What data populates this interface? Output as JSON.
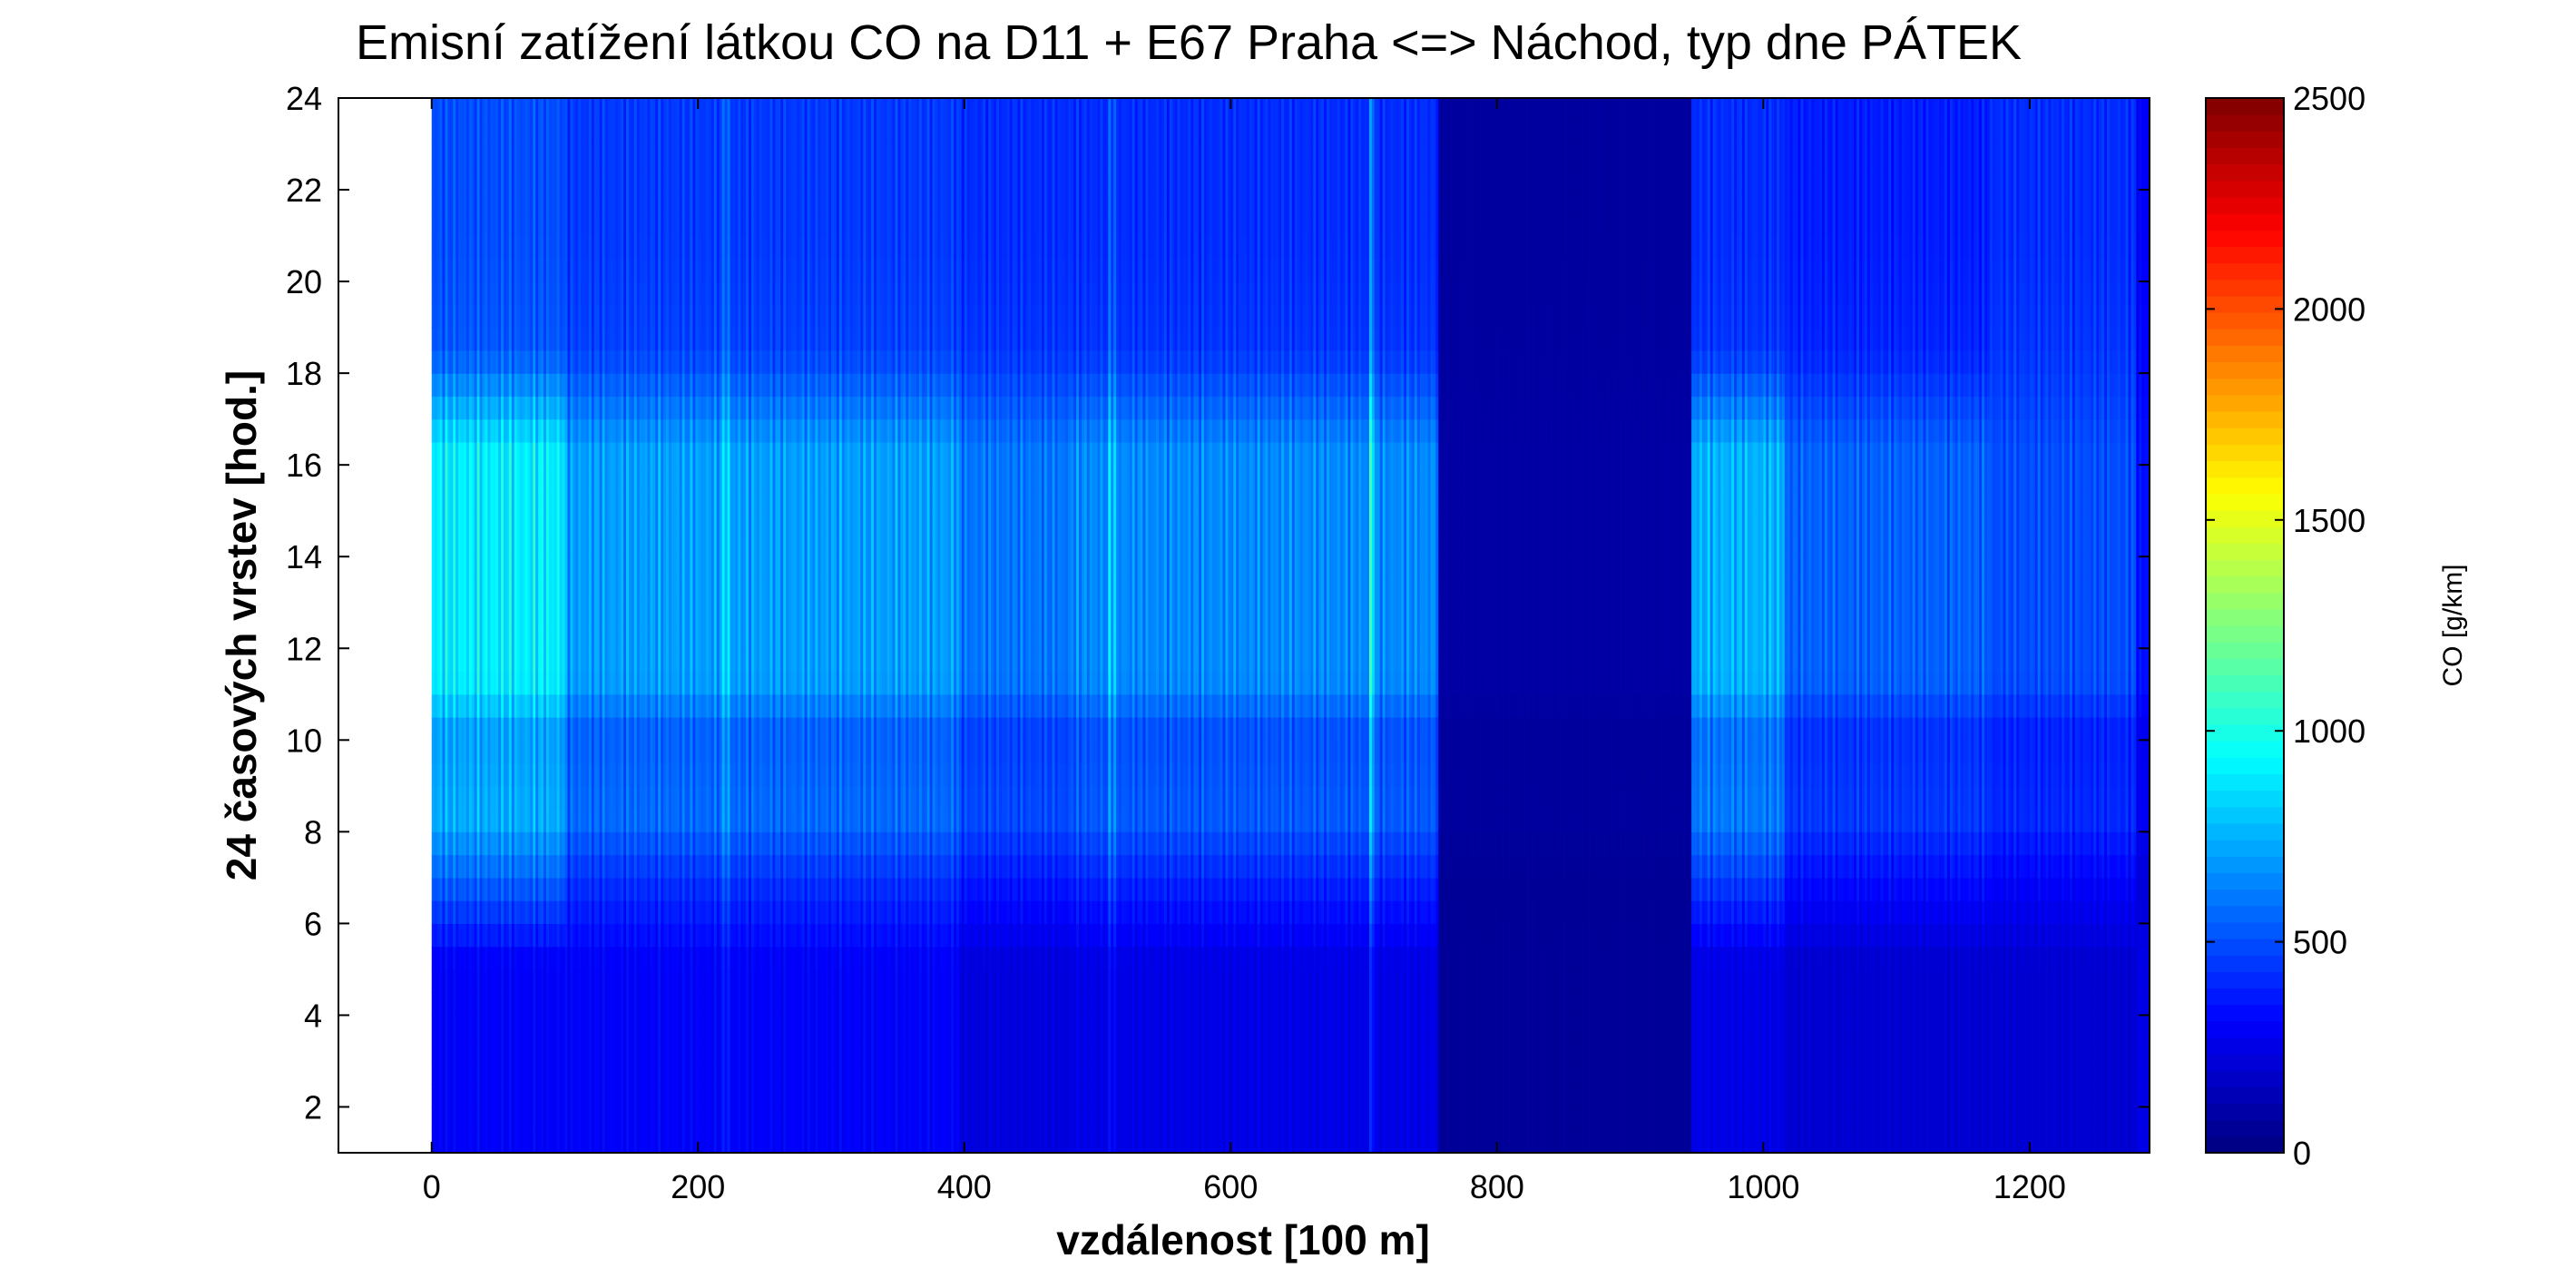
{
  "chart_data": {
    "type": "heatmap",
    "title": "Emisní zatížení látkou CO na D11 + E67 Praha <=> Náchod, typ dne PÁTEK",
    "xlabel": "vzdálenost [100 m]",
    "ylabel": "24 časových vrstev [hod.]",
    "colorbar_label": "CO [g/km]",
    "colormap": "jet",
    "xlim": [
      -70,
      1290
    ],
    "ylim": [
      1,
      24
    ],
    "clim": [
      0,
      2500
    ],
    "x_ticks": [
      0,
      200,
      400,
      600,
      800,
      1000,
      1200
    ],
    "y_ticks": [
      2,
      4,
      6,
      8,
      10,
      12,
      14,
      16,
      18,
      20,
      22,
      24
    ],
    "colorbar_ticks": [
      0,
      500,
      1000,
      1500,
      2000,
      2500
    ],
    "data_extent_x": [
      0,
      1290
    ],
    "segments": [
      {
        "x": [
          0,
          100
        ],
        "night": 300,
        "day": 900,
        "evening": 500
      },
      {
        "x": [
          100,
          395
        ],
        "night": 300,
        "day": 700,
        "evening": 450
      },
      {
        "x": [
          395,
          480
        ],
        "night": 230,
        "day": 600,
        "evening": 420
      },
      {
        "x": [
          480,
          755
        ],
        "night": 250,
        "day": 650,
        "evening": 420
      },
      {
        "x": [
          755,
          945
        ],
        "night": 60,
        "day": 90,
        "evening": 75
      },
      {
        "x": [
          945,
          1015
        ],
        "night": 250,
        "day": 750,
        "evening": 420
      },
      {
        "x": [
          1015,
          1170
        ],
        "night": 200,
        "day": 550,
        "evening": 380
      },
      {
        "x": [
          1170,
          1280
        ],
        "night": 200,
        "day": 500,
        "evening": 420
      },
      {
        "x": [
          1280,
          1290
        ],
        "night": 250,
        "day": 350,
        "evening": 300
      }
    ],
    "hotspots": [
      {
        "x": 220,
        "day": 850
      },
      {
        "x": 510,
        "day": 800
      },
      {
        "x": 705,
        "day": 1000
      }
    ]
  }
}
